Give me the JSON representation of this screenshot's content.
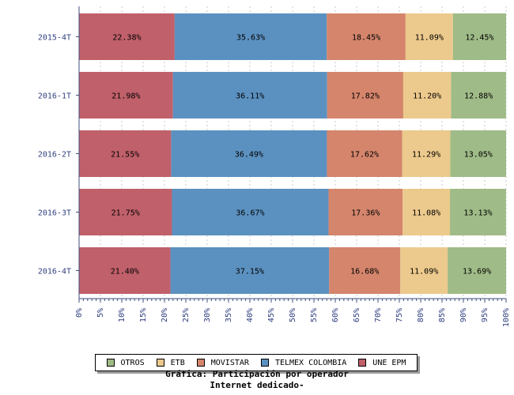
{
  "chart_data": {
    "type": "bar",
    "orientation": "horizontal",
    "stacked": true,
    "categories": [
      "2015-4T",
      "2016-1T",
      "2016-2T",
      "2016-3T",
      "2016-4T"
    ],
    "series": [
      {
        "name": "UNE EPM",
        "color": "#c0606a",
        "values": [
          22.38,
          21.98,
          21.55,
          21.75,
          21.4
        ],
        "labels": [
          "22.38%",
          "21.98%",
          "21.55%",
          "21.75%",
          "21.40%"
        ]
      },
      {
        "name": "TELMEX COLOMBIA",
        "color": "#5b91c0",
        "values": [
          35.63,
          36.11,
          36.49,
          36.67,
          37.15
        ],
        "labels": [
          "35.63%",
          "36.11%",
          "36.49%",
          "36.67%",
          "37.15%"
        ]
      },
      {
        "name": "MOVISTAR",
        "color": "#d4856c",
        "values": [
          18.45,
          17.82,
          17.62,
          17.36,
          16.68
        ],
        "labels": [
          "18.45%",
          "17.82%",
          "17.62%",
          "17.36%",
          "16.68%"
        ]
      },
      {
        "name": "ETB",
        "color": "#ecc98c",
        "values": [
          11.09,
          11.2,
          11.29,
          11.08,
          11.09
        ],
        "labels": [
          "11.09%",
          "11.20%",
          "11.29%",
          "11.08%",
          "11.09%"
        ]
      },
      {
        "name": "OTROS",
        "color": "#9fbb87",
        "values": [
          12.45,
          12.88,
          13.05,
          13.13,
          13.69
        ],
        "labels": [
          "12.45%",
          "12.88%",
          "13.05%",
          "13.13%",
          "13.69%"
        ]
      }
    ],
    "xlim": [
      0,
      100
    ],
    "x_ticks": [
      "0%",
      "5%",
      "10%",
      "15%",
      "20%",
      "25%",
      "30%",
      "35%",
      "40%",
      "45%",
      "50%",
      "55%",
      "60%",
      "65%",
      "70%",
      "75%",
      "80%",
      "85%",
      "90%",
      "95%",
      "100%"
    ],
    "grid": true,
    "legend_position": "bottom",
    "legend_order": [
      "OTROS",
      "ETB",
      "MOVISTAR",
      "TELMEX COLOMBIA",
      "UNE EPM"
    ],
    "caption": [
      "Gráfica: Participación por operador",
      "Internet dedicado-"
    ]
  },
  "colors": {
    "axis": "#3f4f7f",
    "tick_label": "#2f3f7f",
    "grid": "#c8c8c8"
  }
}
